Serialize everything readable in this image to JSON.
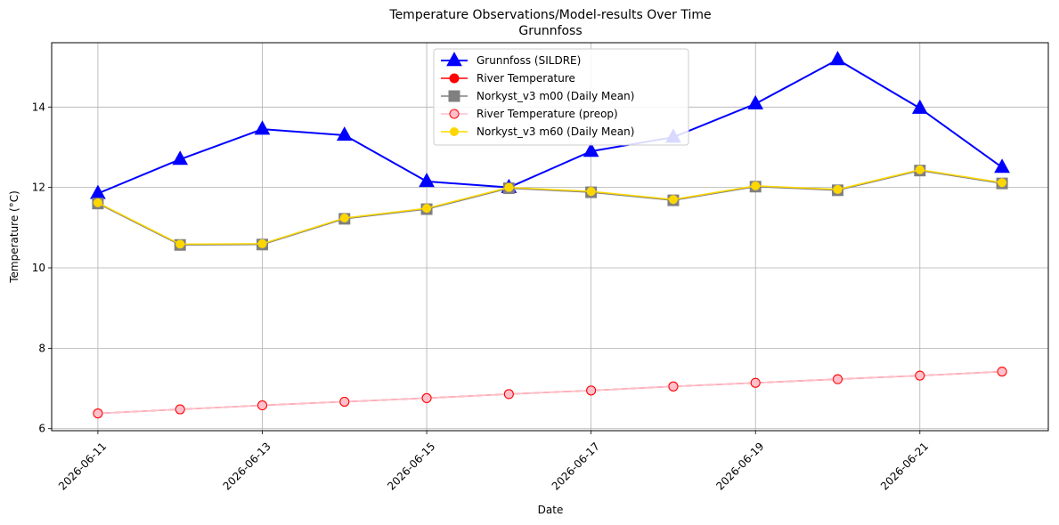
{
  "chart_data": {
    "type": "line",
    "title": "Temperature Observations/Model-results Over Time",
    "subtitle": "Grunnfoss",
    "xlabel": "Date",
    "ylabel": "Temperature (°C)",
    "x": [
      "2026-06-11",
      "2026-06-12",
      "2026-06-13",
      "2026-06-14",
      "2026-06-15",
      "2026-06-16",
      "2026-06-17",
      "2026-06-18",
      "2026-06-19",
      "2026-06-20",
      "2026-06-21",
      "2026-06-22"
    ],
    "x_ticks": [
      "2026-06-11",
      "2026-06-13",
      "2026-06-15",
      "2026-06-17",
      "2026-06-19",
      "2026-06-21"
    ],
    "xlim": [
      "2026-06-10T10:30",
      "2026-06-22T13:30"
    ],
    "ylim": [
      5.95,
      15.6
    ],
    "y_ticks": [
      6,
      8,
      10,
      12,
      14
    ],
    "grid": true,
    "legend_position": "upper center",
    "series": [
      {
        "name": "Grunnfoss (SILDRE)",
        "color": "#0000ff",
        "marker": "triangle",
        "values": [
          11.85,
          12.7,
          13.45,
          13.3,
          12.15,
          12.0,
          12.9,
          13.25,
          14.08,
          15.18,
          13.97,
          12.5
        ]
      },
      {
        "name": "River Temperature",
        "color": "#ff0000",
        "marker": "circle",
        "values": [
          6.38,
          6.48,
          6.58,
          6.67,
          6.76,
          6.86,
          6.95,
          7.05,
          7.14,
          7.23,
          7.32,
          7.42
        ]
      },
      {
        "name": "Norkyst_v3 m00 (Daily Mean)",
        "color": "#808080",
        "marker": "square",
        "values": [
          11.6,
          10.57,
          10.58,
          11.22,
          11.46,
          11.98,
          11.88,
          11.68,
          12.02,
          11.93,
          12.42,
          12.1
        ]
      },
      {
        "name": "River Temperature (preop)",
        "color": "#ffc0cb",
        "marker": "circle",
        "values": [
          6.38,
          6.48,
          6.58,
          6.67,
          6.76,
          6.86,
          6.95,
          7.05,
          7.14,
          7.23,
          7.32,
          7.42
        ]
      },
      {
        "name": "Norkyst_v3 m60 (Daily Mean)",
        "color": "#ffd700",
        "marker": "circle",
        "values": [
          11.62,
          10.59,
          10.6,
          11.24,
          11.48,
          12.0,
          11.9,
          11.7,
          12.04,
          11.95,
          12.44,
          12.12
        ]
      }
    ]
  }
}
